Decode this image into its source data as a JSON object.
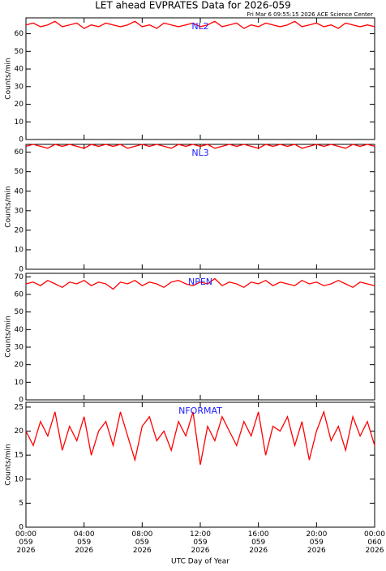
{
  "title": "LET ahead EVPRATES Data for 2026-059",
  "subtitle": "Fri Mar  6 09:55:15 2026 ACE Science Center",
  "chart_data": [
    {
      "type": "line",
      "ylabel": "Counts/min",
      "ylim": [
        0,
        69
      ],
      "yticks": [
        0,
        10,
        20,
        30,
        40,
        50,
        60
      ],
      "xlim": [
        0,
        24
      ],
      "x": [
        0,
        0.5,
        1,
        1.5,
        2,
        2.5,
        3,
        3.5,
        4,
        4.5,
        5,
        5.5,
        6,
        6.5,
        7,
        7.5,
        8,
        8.5,
        9,
        9.5,
        10,
        10.5,
        11,
        11.5,
        12,
        12.5,
        13,
        13.5,
        14,
        14.5,
        15,
        15.5,
        16,
        16.5,
        17,
        17.5,
        18,
        18.5,
        19,
        19.5,
        20,
        20.5,
        21,
        21.5,
        22,
        22.5,
        23,
        23.5,
        24
      ],
      "series": [
        {
          "name": "NL2",
          "color": "#ff0000",
          "values": [
            65,
            66,
            64,
            65,
            67,
            64,
            65,
            66,
            63,
            65,
            64,
            66,
            65,
            64,
            65,
            67,
            64,
            65,
            63,
            66,
            65,
            64,
            65,
            66,
            64,
            65,
            67,
            64,
            65,
            66,
            63,
            65,
            64,
            66,
            65,
            64,
            65,
            67,
            64,
            65,
            66,
            64,
            65,
            63,
            66,
            65,
            64,
            65,
            64
          ]
        }
      ]
    },
    {
      "type": "line",
      "ylabel": "Counts/min",
      "ylim": [
        0,
        64
      ],
      "yticks": [
        0,
        10,
        20,
        30,
        40,
        50,
        60
      ],
      "xlim": [
        0,
        24
      ],
      "x": [
        0,
        0.5,
        1,
        1.5,
        2,
        2.5,
        3,
        3.5,
        4,
        4.5,
        5,
        5.5,
        6,
        6.5,
        7,
        7.5,
        8,
        8.5,
        9,
        9.5,
        10,
        10.5,
        11,
        11.5,
        12,
        12.5,
        13,
        13.5,
        14,
        14.5,
        15,
        15.5,
        16,
        16.5,
        17,
        17.5,
        18,
        18.5,
        19,
        19.5,
        20,
        20.5,
        21,
        21.5,
        22,
        22.5,
        23,
        23.5,
        24
      ],
      "series": [
        {
          "name": "NL3",
          "color": "#ff0000",
          "values": [
            63,
            64,
            63,
            62,
            64,
            63,
            64,
            63,
            62,
            64,
            63,
            64,
            63,
            64,
            62,
            63,
            64,
            63,
            64,
            63,
            62,
            64,
            63,
            64,
            63,
            64,
            62,
            63,
            64,
            63,
            64,
            63,
            62,
            64,
            63,
            64,
            63,
            64,
            62,
            63,
            64,
            63,
            64,
            63,
            62,
            64,
            63,
            64,
            63
          ]
        }
      ]
    },
    {
      "type": "line",
      "ylabel": "Counts/min",
      "ylim": [
        0,
        72
      ],
      "yticks": [
        0,
        10,
        20,
        30,
        40,
        50,
        60,
        70
      ],
      "xlim": [
        0,
        24
      ],
      "x": [
        0,
        0.5,
        1,
        1.5,
        2,
        2.5,
        3,
        3.5,
        4,
        4.5,
        5,
        5.5,
        6,
        6.5,
        7,
        7.5,
        8,
        8.5,
        9,
        9.5,
        10,
        10.5,
        11,
        11.5,
        12,
        12.5,
        13,
        13.5,
        14,
        14.5,
        15,
        15.5,
        16,
        16.5,
        17,
        17.5,
        18,
        18.5,
        19,
        19.5,
        20,
        20.5,
        21,
        21.5,
        22,
        22.5,
        23,
        23.5,
        24
      ],
      "series": [
        {
          "name": "NPEN",
          "color": "#ff0000",
          "values": [
            66,
            67,
            65,
            68,
            66,
            64,
            67,
            66,
            68,
            65,
            67,
            66,
            63,
            67,
            66,
            68,
            65,
            67,
            66,
            64,
            67,
            68,
            66,
            65,
            67,
            66,
            69,
            65,
            67,
            66,
            64,
            67,
            66,
            68,
            65,
            67,
            66,
            65,
            68,
            66,
            67,
            65,
            66,
            68,
            66,
            64,
            67,
            66,
            65
          ]
        }
      ]
    },
    {
      "type": "line",
      "ylabel": "Counts/min",
      "xlabel": "UTC Day of Year",
      "ylim": [
        0,
        26
      ],
      "yticks": [
        0,
        5,
        10,
        15,
        20,
        25
      ],
      "xlim": [
        0,
        24
      ],
      "xticks": [
        {
          "value": 0,
          "label": "00:00\n059\n2026"
        },
        {
          "value": 4,
          "label": "04:00\n059\n2026"
        },
        {
          "value": 8,
          "label": "08:00\n059\n2026"
        },
        {
          "value": 12,
          "label": "12:00\n059\n2026"
        },
        {
          "value": 16,
          "label": "16:00\n059\n2026"
        },
        {
          "value": 20,
          "label": "20:00\n059\n2026"
        },
        {
          "value": 24,
          "label": "00:00\n060\n2026"
        }
      ],
      "x": [
        0,
        0.5,
        1,
        1.5,
        2,
        2.5,
        3,
        3.5,
        4,
        4.5,
        5,
        5.5,
        6,
        6.5,
        7,
        7.5,
        8,
        8.5,
        9,
        9.5,
        10,
        10.5,
        11,
        11.5,
        12,
        12.5,
        13,
        13.5,
        14,
        14.5,
        15,
        15.5,
        16,
        16.5,
        17,
        17.5,
        18,
        18.5,
        19,
        19.5,
        20,
        20.5,
        21,
        21.5,
        22,
        22.5,
        23,
        23.5,
        24
      ],
      "series": [
        {
          "name": "NFORMAT",
          "color": "#ff0000",
          "values": [
            20,
            17,
            22,
            19,
            24,
            16,
            21,
            18,
            23,
            15,
            20,
            22,
            17,
            24,
            19,
            14,
            21,
            23,
            18,
            20,
            16,
            22,
            19,
            24,
            13,
            21,
            18,
            23,
            20,
            17,
            22,
            19,
            24,
            15,
            21,
            20,
            23,
            17,
            22,
            14,
            20,
            24,
            18,
            21,
            16,
            23,
            19,
            22,
            17
          ]
        }
      ]
    }
  ]
}
